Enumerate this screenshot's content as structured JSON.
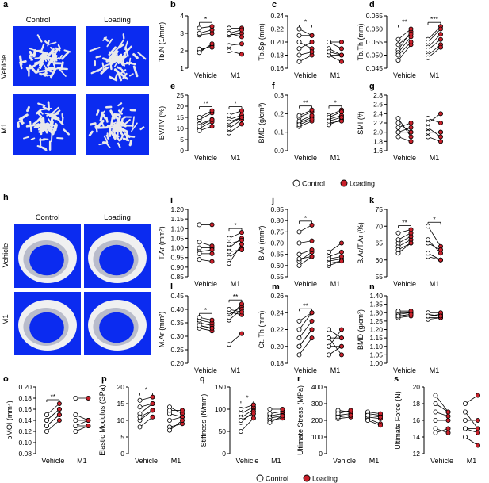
{
  "images": {
    "a": {
      "letter": "a",
      "col_labels": [
        "Control",
        "Loading"
      ],
      "row_labels": [
        "Vehicle",
        "M1"
      ]
    },
    "h": {
      "letter": "h",
      "col_labels": [
        "Control",
        "Loading"
      ],
      "row_labels": [
        "Vehicle",
        "M1"
      ]
    }
  },
  "legend": {
    "labels": [
      "Control",
      "Loading"
    ]
  },
  "colors": {
    "control_fill": "#ffffff",
    "loading_fill": "#c8202a",
    "stroke": "#000000",
    "microct_bg": "#0b2bf0",
    "bone": "#e9e9ea"
  },
  "chart_data": [
    {
      "id": "b",
      "type": "scatter",
      "ylabel": "Tb.N (1/mm)",
      "ylim": [
        1,
        4
      ],
      "yticks": [
        "1",
        "2",
        "3",
        "4"
      ],
      "categories": [
        "Vehicle",
        "M1"
      ],
      "sig": [
        "*",
        ""
      ],
      "series": [
        {
          "name": "Control",
          "values": [
            [
              2.0,
              2.1,
              2.9,
              3.0,
              3.3,
              1.9
            ],
            [
              2.9,
              3.0,
              3.3,
              2.3,
              2.0,
              3.0
            ]
          ]
        },
        {
          "name": "Loading",
          "values": [
            [
              2.3,
              2.2,
              3.0,
              3.2,
              3.4,
              2.4
            ],
            [
              3.0,
              2.8,
              3.3,
              2.4,
              1.8,
              3.2
            ]
          ]
        }
      ]
    },
    {
      "id": "c",
      "type": "scatter",
      "ylabel": "Tb.Sp (mm)",
      "ylim": [
        0.16,
        0.24
      ],
      "yticks": [
        "0.16",
        "0.18",
        "0.20",
        "0.22",
        "0.24"
      ],
      "categories": [
        "Vehicle",
        "M1"
      ],
      "sig": [
        "*",
        ""
      ],
      "series": [
        {
          "name": "Control",
          "values": [
            [
              0.21,
              0.2,
              0.17,
              0.18,
              0.22,
              0.19
            ],
            [
              0.2,
              0.19,
              0.18,
              0.18,
              0.2,
              0.185
            ]
          ]
        },
        {
          "name": "Loading",
          "values": [
            [
              0.21,
              0.19,
              0.18,
              0.185,
              0.21,
              0.2
            ],
            [
              0.19,
              0.18,
              0.18,
              0.17,
              0.2,
              0.18
            ]
          ]
        }
      ]
    },
    {
      "id": "d",
      "type": "scatter",
      "ylabel": "Tb.Th (mm)",
      "ylim": [
        0.045,
        0.065
      ],
      "yticks": [
        "0.045",
        "0.050",
        "0.055",
        "0.060",
        "0.065"
      ],
      "categories": [
        "Vehicle",
        "M1"
      ],
      "sig": [
        "**",
        "***"
      ],
      "series": [
        {
          "name": "Control",
          "values": [
            [
              0.052,
              0.051,
              0.048,
              0.05,
              0.056,
              0.054
            ],
            [
              0.056,
              0.053,
              0.05,
              0.049,
              0.052,
              0.055
            ]
          ]
        },
        {
          "name": "Loading",
          "values": [
            [
              0.059,
              0.057,
              0.054,
              0.055,
              0.06,
              0.058
            ],
            [
              0.061,
              0.058,
              0.054,
              0.053,
              0.056,
              0.06
            ]
          ]
        }
      ]
    },
    {
      "id": "e",
      "type": "scatter",
      "ylabel": "BV/TV (%)",
      "ylim": [
        0,
        25
      ],
      "yticks": [
        "0",
        "5",
        "10",
        "15",
        "20",
        "25"
      ],
      "categories": [
        "Vehicle",
        "M1"
      ],
      "sig": [
        "**",
        "*"
      ],
      "series": [
        {
          "name": "Control",
          "values": [
            [
              14,
              10,
              9,
              12,
              15,
              11
            ],
            [
              16,
              12,
              8,
              10,
              14,
              13
            ]
          ]
        },
        {
          "name": "Loading",
          "values": [
            [
              17,
              13,
              11,
              14,
              18,
              14
            ],
            [
              18,
              15,
              12,
              14,
              16,
              15
            ]
          ]
        }
      ]
    },
    {
      "id": "f",
      "type": "scatter",
      "ylabel": "BMD (g/cm³)",
      "ylim": [
        0.0,
        0.3
      ],
      "yticks": [
        "0.0",
        "0.1",
        "0.2",
        "0.3"
      ],
      "categories": [
        "Vehicle",
        "M1"
      ],
      "sig": [
        "**",
        "*"
      ],
      "series": [
        {
          "name": "Control",
          "values": [
            [
              0.18,
              0.15,
              0.13,
              0.16,
              0.19,
              0.14
            ],
            [
              0.19,
              0.17,
              0.14,
              0.15,
              0.18,
              0.16
            ]
          ]
        },
        {
          "name": "Loading",
          "values": [
            [
              0.21,
              0.18,
              0.16,
              0.19,
              0.22,
              0.17
            ],
            [
              0.22,
              0.19,
              0.17,
              0.16,
              0.21,
              0.18
            ]
          ]
        }
      ]
    },
    {
      "id": "g",
      "type": "scatter",
      "ylabel": "SMI (#)",
      "ylim": [
        1.6,
        2.8
      ],
      "yticks": [
        "1.6",
        "1.8",
        "2.0",
        "2.2",
        "2.4",
        "2.6",
        "2.8"
      ],
      "categories": [
        "Vehicle",
        "M1"
      ],
      "sig": [
        "",
        ""
      ],
      "series": [
        {
          "name": "Control",
          "values": [
            [
              2.2,
              2.1,
              2.3,
              2.0,
              1.9,
              2.0
            ],
            [
              2.2,
              2.0,
              1.9,
              2.1,
              2.3,
              2.0
            ]
          ]
        },
        {
          "name": "Loading",
          "values": [
            [
              2.0,
              2.2,
              1.9,
              2.0,
              1.8,
              2.1
            ],
            [
              2.4,
              2.0,
              1.8,
              1.9,
              2.2,
              2.0
            ]
          ]
        }
      ]
    },
    {
      "id": "i",
      "type": "scatter",
      "ylabel": "T.Ar (mm²)",
      "ylim": [
        0.85,
        1.2
      ],
      "yticks": [
        "0.85",
        "0.90",
        "0.95",
        "1.00",
        "1.05",
        "1.10",
        "1.15",
        "1.20"
      ],
      "categories": [
        "Vehicle",
        "M1"
      ],
      "sig": [
        "",
        "*"
      ],
      "series": [
        {
          "name": "Control",
          "values": [
            [
              1.0,
              0.98,
              0.94,
              1.03,
              1.12,
              0.97
            ],
            [
              1.0,
              0.95,
              1.05,
              0.92,
              0.98,
              1.02
            ]
          ]
        },
        {
          "name": "Loading",
          "values": [
            [
              1.0,
              0.99,
              0.93,
              1.01,
              1.12,
              0.97
            ],
            [
              1.05,
              1.0,
              1.08,
              1.02,
              0.99,
              1.04
            ]
          ]
        }
      ]
    },
    {
      "id": "j",
      "type": "scatter",
      "ylabel": "B.Ar (mm²)",
      "ylim": [
        0.55,
        0.85
      ],
      "yticks": [
        "0.55",
        "0.60",
        "0.65",
        "0.70",
        "0.75",
        "0.80",
        "0.85"
      ],
      "categories": [
        "Vehicle",
        "M1"
      ],
      "sig": [
        "*",
        ""
      ],
      "series": [
        {
          "name": "Control",
          "values": [
            [
              0.75,
              0.62,
              0.6,
              0.65,
              0.7,
              0.63
            ],
            [
              0.64,
              0.62,
              0.6,
              0.63,
              0.61,
              0.66
            ]
          ]
        },
        {
          "name": "Loading",
          "values": [
            [
              0.78,
              0.66,
              0.64,
              0.67,
              0.71,
              0.64
            ],
            [
              0.66,
              0.63,
              0.62,
              0.64,
              0.62,
              0.7
            ]
          ]
        }
      ]
    },
    {
      "id": "k",
      "type": "scatter",
      "ylabel": "B.Ar/T.Ar (%)",
      "ylim": [
        55,
        75
      ],
      "yticks": [
        "55",
        "60",
        "65",
        "70",
        "75"
      ],
      "categories": [
        "Vehicle",
        "M1"
      ],
      "sig": [
        "**",
        "*"
      ],
      "series": [
        {
          "name": "Control",
          "values": [
            [
              64,
              62,
              65,
              66,
              68,
              63
            ],
            [
              70,
              62,
              61,
              65,
              62,
              66
            ]
          ]
        },
        {
          "name": "Loading",
          "values": [
            [
              66,
              65,
              67,
              68,
              69,
              65
            ],
            [
              64,
              60,
              60,
              63,
              60,
              62
            ]
          ]
        }
      ]
    },
    {
      "id": "l",
      "type": "scatter",
      "ylabel": "M.Ar (mm²)",
      "ylim": [
        0.2,
        0.45
      ],
      "yticks": [
        "0.20",
        "0.25",
        "0.30",
        "0.35",
        "0.40",
        "0.45"
      ],
      "categories": [
        "Vehicle",
        "M1"
      ],
      "sig": [
        "*",
        "**"
      ],
      "series": [
        {
          "name": "Control",
          "values": [
            [
              0.35,
              0.34,
              0.33,
              0.36,
              0.37,
              0.34
            ],
            [
              0.38,
              0.36,
              0.27,
              0.39,
              0.37,
              0.4
            ]
          ]
        },
        {
          "name": "Loading",
          "values": [
            [
              0.34,
              0.33,
              0.32,
              0.35,
              0.36,
              0.33
            ],
            [
              0.41,
              0.4,
              0.31,
              0.38,
              0.42,
              0.39
            ]
          ]
        }
      ]
    },
    {
      "id": "m",
      "type": "scatter",
      "ylabel": "Ct. Th (mm)",
      "ylim": [
        0.18,
        0.26
      ],
      "yticks": [
        "0.18",
        "0.20",
        "0.22",
        "0.24",
        "0.26"
      ],
      "categories": [
        "Vehicle",
        "M1"
      ],
      "sig": [
        "**",
        ""
      ],
      "series": [
        {
          "name": "Control",
          "values": [
            [
              0.21,
              0.2,
              0.19,
              0.22,
              0.23,
              0.2
            ],
            [
              0.22,
              0.2,
              0.19,
              0.21,
              0.2,
              0.21
            ]
          ]
        },
        {
          "name": "Loading",
          "values": [
            [
              0.23,
              0.22,
              0.21,
              0.24,
              0.24,
              0.22
            ],
            [
              0.21,
              0.2,
              0.2,
              0.21,
              0.22,
              0.19
            ]
          ]
        }
      ]
    },
    {
      "id": "n",
      "type": "scatter",
      "ylabel": "BMD (g/cm³)",
      "ylim": [
        1.0,
        1.4
      ],
      "yticks": [
        "1.00",
        "1.05",
        "1.10",
        "1.15",
        "1.20",
        "1.25",
        "1.30",
        "1.35",
        "1.40"
      ],
      "categories": [
        "Vehicle",
        "M1"
      ],
      "sig": [
        "",
        ""
      ],
      "series": [
        {
          "name": "Control",
          "values": [
            [
              1.29,
              1.28,
              1.27,
              1.3,
              1.31,
              1.28
            ],
            [
              1.29,
              1.27,
              1.26,
              1.28,
              1.3,
              1.28
            ]
          ]
        },
        {
          "name": "Loading",
          "values": [
            [
              1.3,
              1.29,
              1.28,
              1.3,
              1.31,
              1.29
            ],
            [
              1.28,
              1.27,
              1.27,
              1.29,
              1.3,
              1.28
            ]
          ]
        }
      ]
    },
    {
      "id": "o",
      "type": "scatter",
      "ylabel": "pMOI (mm⁴)",
      "ylim": [
        0.08,
        0.2
      ],
      "yticks": [
        "0.08",
        "0.10",
        "0.12",
        "0.14",
        "0.16",
        "0.18",
        "0.20"
      ],
      "categories": [
        "Vehicle",
        "M1"
      ],
      "sig": [
        "**",
        ""
      ],
      "series": [
        {
          "name": "Control",
          "values": [
            [
              0.14,
              0.13,
              0.12,
              0.14,
              0.15,
              0.13
            ],
            [
              0.14,
              0.13,
              0.12,
              0.15,
              0.18,
              0.13
            ]
          ]
        },
        {
          "name": "Loading",
          "values": [
            [
              0.16,
              0.15,
              0.14,
              0.16,
              0.17,
              0.15
            ],
            [
              0.14,
              0.13,
              0.13,
              0.14,
              0.18,
              0.14
            ]
          ]
        }
      ]
    },
    {
      "id": "p",
      "type": "scatter",
      "ylabel": "Elastic Modulus (GPa)",
      "ylim": [
        0,
        20
      ],
      "yticks": [
        "0",
        "5",
        "10",
        "15",
        "20"
      ],
      "categories": [
        "Vehicle",
        "M1"
      ],
      "sig": [
        "*",
        ""
      ],
      "series": [
        {
          "name": "Control",
          "values": [
            [
              12,
              10,
              8,
              14,
              16,
              11
            ],
            [
              14,
              12,
              8,
              10,
              7,
              13
            ]
          ]
        },
        {
          "name": "Loading",
          "values": [
            [
              15,
              13,
              11,
              15,
              17,
              13
            ],
            [
              12,
              11,
              9,
              11,
              10,
              13
            ]
          ]
        }
      ]
    },
    {
      "id": "q",
      "type": "scatter",
      "ylabel": "Stiffness (N/mm)",
      "ylim": [
        0,
        150
      ],
      "yticks": [
        "0",
        "50",
        "100",
        "150"
      ],
      "categories": [
        "Vehicle",
        "M1"
      ],
      "sig": [
        "*",
        ""
      ],
      "series": [
        {
          "name": "Control",
          "values": [
            [
              80,
              70,
              50,
              90,
              100,
              75
            ],
            [
              85,
              80,
              75,
              90,
              100,
              70
            ]
          ]
        },
        {
          "name": "Loading",
          "values": [
            [
              100,
              95,
              80,
              105,
              110,
              90
            ],
            [
              90,
              85,
              80,
              95,
              100,
              85
            ]
          ]
        }
      ]
    },
    {
      "id": "r",
      "type": "scatter",
      "ylabel": "Ultimate Stress (MPa)",
      "ylim": [
        0,
        400
      ],
      "yticks": [
        "0",
        "100",
        "200",
        "300",
        "400"
      ],
      "categories": [
        "Vehicle",
        "M1"
      ],
      "sig": [
        "",
        ""
      ],
      "series": [
        {
          "name": "Control",
          "values": [
            [
              230,
              250,
              210,
              260,
              240,
              220
            ],
            [
              210,
              240,
              220,
              200,
              250,
              230
            ]
          ]
        },
        {
          "name": "Loading",
          "values": [
            [
              240,
              255,
              220,
              250,
              260,
              230
            ],
            [
              180,
              230,
              210,
              170,
              240,
              220
            ]
          ]
        }
      ]
    },
    {
      "id": "s",
      "type": "scatter",
      "ylabel": "Ultimate Force (N)",
      "ylim": [
        12,
        20
      ],
      "yticks": [
        "12",
        "14",
        "16",
        "18",
        "20"
      ],
      "categories": [
        "Vehicle",
        "M1"
      ],
      "sig": [
        "",
        ""
      ],
      "series": [
        {
          "name": "Control",
          "values": [
            [
              16,
              15,
              18,
              17,
              14.5,
              19
            ],
            [
              15,
              14,
              16,
              17,
              15,
              18
            ]
          ]
        },
        {
          "name": "Loading",
          "values": [
            [
              16,
              14.5,
              17,
              16.5,
              15,
              17
            ],
            [
              15,
              13,
              16,
              15,
              14.5,
              19
            ]
          ]
        }
      ]
    }
  ]
}
